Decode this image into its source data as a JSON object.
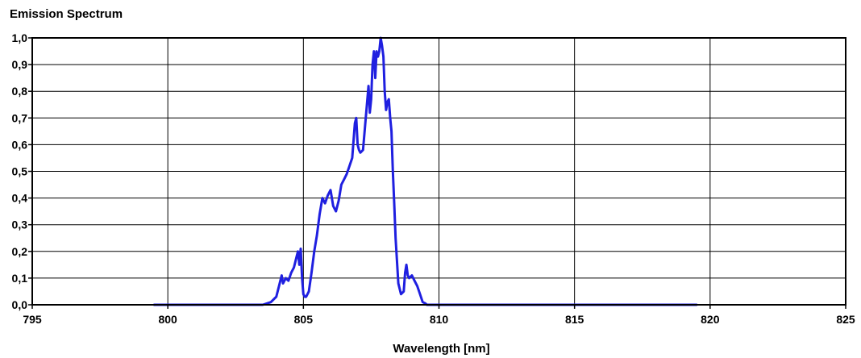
{
  "chart_data": {
    "type": "line",
    "title": "Emission Spectrum",
    "xlabel": "Wavelength [nm]",
    "ylabel": "",
    "xlim": [
      795,
      825
    ],
    "ylim": [
      0,
      1.0
    ],
    "x_ticks": [
      795,
      800,
      805,
      810,
      815,
      820,
      825
    ],
    "x_tick_labels": [
      "795",
      "800",
      "805",
      "810",
      "815",
      "820",
      "825"
    ],
    "y_ticks": [
      0,
      0.1,
      0.2,
      0.3,
      0.4,
      0.5,
      0.6,
      0.7,
      0.8,
      0.9,
      1.0
    ],
    "y_tick_labels": [
      "0,0",
      "0,1",
      "0,2",
      "0,3",
      "0,4",
      "0,5",
      "0,6",
      "0,7",
      "0,8",
      "0,9",
      "1,0"
    ],
    "grid": true,
    "legend": "none",
    "series": [
      {
        "color": "#1f1fe0",
        "x": [
          799.5,
          803.5,
          803.8,
          804.0,
          804.1,
          804.2,
          804.25,
          804.35,
          804.45,
          804.55,
          804.65,
          804.75,
          804.8,
          804.85,
          804.9,
          804.95,
          805.0,
          805.05,
          805.1,
          805.15,
          805.2,
          805.3,
          805.4,
          805.5,
          805.6,
          805.7,
          805.8,
          805.9,
          806.0,
          806.1,
          806.2,
          806.3,
          806.4,
          806.5,
          806.6,
          806.7,
          806.8,
          806.9,
          806.95,
          807.0,
          807.05,
          807.1,
          807.2,
          807.3,
          807.4,
          807.45,
          807.5,
          807.55,
          807.6,
          807.65,
          807.7,
          807.75,
          807.8,
          807.85,
          807.9,
          807.95,
          808.0,
          808.05,
          808.1,
          808.15,
          808.2,
          808.25,
          808.3,
          808.35,
          808.4,
          808.5,
          808.6,
          808.7,
          808.75,
          808.8,
          808.85,
          808.9,
          809.0,
          809.1,
          809.2,
          809.3,
          809.4,
          809.5,
          809.55,
          809.7,
          819.5
        ],
        "y": [
          0.0,
          0.0,
          0.01,
          0.03,
          0.07,
          0.11,
          0.08,
          0.1,
          0.09,
          0.12,
          0.14,
          0.18,
          0.2,
          0.15,
          0.21,
          0.1,
          0.04,
          0.03,
          0.03,
          0.04,
          0.05,
          0.12,
          0.2,
          0.26,
          0.34,
          0.4,
          0.38,
          0.41,
          0.43,
          0.37,
          0.35,
          0.39,
          0.45,
          0.47,
          0.49,
          0.52,
          0.55,
          0.68,
          0.7,
          0.6,
          0.58,
          0.57,
          0.58,
          0.7,
          0.82,
          0.72,
          0.77,
          0.9,
          0.95,
          0.85,
          0.95,
          0.93,
          0.95,
          1.0,
          0.97,
          0.93,
          0.8,
          0.73,
          0.76,
          0.77,
          0.7,
          0.65,
          0.5,
          0.38,
          0.25,
          0.08,
          0.04,
          0.05,
          0.12,
          0.15,
          0.11,
          0.1,
          0.11,
          0.09,
          0.07,
          0.04,
          0.01,
          0.005,
          0.0,
          0.0,
          0.0
        ]
      }
    ]
  }
}
